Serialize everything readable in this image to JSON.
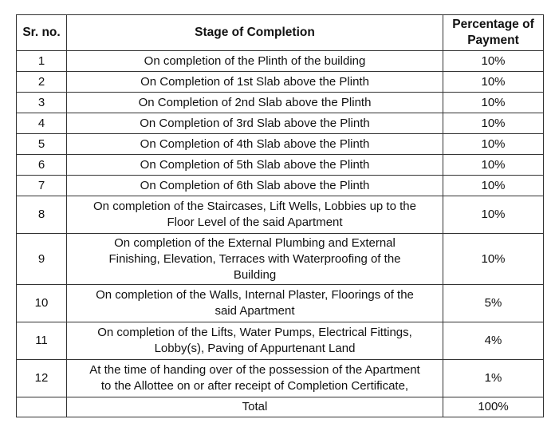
{
  "header": {
    "sr": "Sr. no.",
    "stage": "Stage of Completion",
    "pct": "Percentage of\nPayment"
  },
  "rows": [
    {
      "sr": "1",
      "stage": "On completion of the Plinth of the building",
      "pct": "10%"
    },
    {
      "sr": "2",
      "stage": "On Completion of 1st Slab above the Plinth",
      "pct": "10%"
    },
    {
      "sr": "3",
      "stage": "On Completion of 2nd Slab above the Plinth",
      "pct": "10%"
    },
    {
      "sr": "4",
      "stage": "On Completion of 3rd Slab above the Plinth",
      "pct": "10%"
    },
    {
      "sr": "5",
      "stage": "On Completion of 4th Slab above the Plinth",
      "pct": "10%"
    },
    {
      "sr": "6",
      "stage": "On Completion of 5th Slab above the Plinth",
      "pct": "10%"
    },
    {
      "sr": "7",
      "stage": "On Completion of 6th Slab above the Plinth",
      "pct": "10%"
    },
    {
      "sr": "8",
      "stage": "On completion of the Staircases, Lift Wells, Lobbies up to the\nFloor Level of the said Apartment",
      "pct": "10%"
    },
    {
      "sr": "9",
      "stage": "On completion of the External Plumbing and External\nFinishing, Elevation, Terraces with Waterproofing of the\nBuilding",
      "pct": "10%"
    },
    {
      "sr": "10",
      "stage": "On completion of the Walls, Internal Plaster, Floorings of the\nsaid Apartment",
      "pct": "5%"
    },
    {
      "sr": "11",
      "stage": "On completion of the Lifts, Water Pumps, Electrical Fittings,\nLobby(s), Paving of Appurtenant Land",
      "pct": "4%"
    },
    {
      "sr": "12",
      "stage": "At the time of handing over of the possession of the Apartment\nto the Allottee on or after receipt of Completion Certificate,",
      "pct": "1%"
    }
  ],
  "total": {
    "sr": "",
    "stage": "Total",
    "pct": "100%"
  }
}
